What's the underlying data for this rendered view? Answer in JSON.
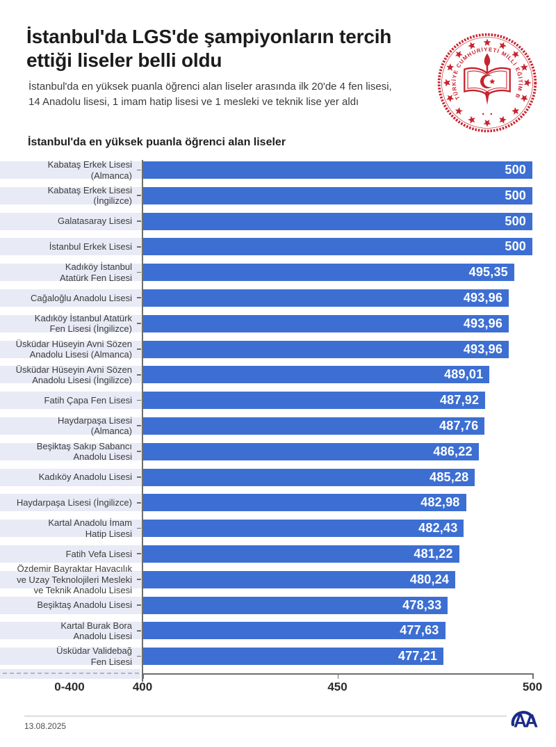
{
  "header": {
    "title_line1": "İstanbul'da LGS'de şampiyonların tercih",
    "title_line2": "ettiği liseler belli oldu",
    "subtitle_line1": "İstanbul'da en yüksek puanla öğrenci alan liseler arasında ilk 20'de 4 fen lisesi,",
    "subtitle_line2": "14 Anadolu lisesi, 1 imam hatip lisesi ve 1 mesleki ve teknik lise yer aldı",
    "ministry_seal_ring_text": "TÜRKİYE CUMHURİYETİ MİLLİ EĞİTİM BAKANLIĞI"
  },
  "chart_title": "İstanbul'da en yüksek puanla öğrenci alan liseler",
  "chart_data": {
    "type": "bar",
    "orientation": "horizontal",
    "title": "İstanbul'da en yüksek puanla öğrenci alan liseler",
    "axis": {
      "display_min": 400,
      "display_max": 500,
      "break_label": "0-400",
      "ticks": [
        {
          "label": "400",
          "value": 400
        },
        {
          "label": "450",
          "value": 450
        },
        {
          "label": "500",
          "value": 500
        }
      ]
    },
    "categories": [
      "Kabataş Erkek Lisesi (Almanca)",
      "Kabataş Erkek Lisesi (İngilizce)",
      "Galatasaray Lisesi",
      "İstanbul Erkek Lisesi",
      "Kadıköy İstanbul Atatürk Fen Lisesi",
      "Cağaloğlu Anadolu Lisesi",
      "Kadıköy İstanbul Atatürk Fen Lisesi (İngilizce)",
      "Üsküdar Hüseyin Avni Sözen Anadolu Lisesi (Almanca)",
      "Üsküdar Hüseyin Avni Sözen Anadolu Lisesi (İngilizce)",
      "Fatih Çapa Fen Lisesi",
      "Haydarpaşa Lisesi (Almanca)",
      "Beşiktaş Sakıp Sabancı Anadolu Lisesi",
      "Kadıköy Anadolu Lisesi",
      "Haydarpaşa Lisesi (İngilizce)",
      "Kartal Anadolu İmam Hatip Lisesi",
      "Fatih Vefa Lisesi",
      "Özdemir Bayraktar Havacılık ve Uzay Teknolojileri Mesleki ve Teknik Anadolu Lisesi",
      "Beşiktaş Anadolu Lisesi",
      "Kartal Burak Bora Anadolu Lisesi",
      "Üsküdar Validebağ Fen Lisesi"
    ],
    "label_lines": [
      [
        "Kabataş Erkek Lisesi",
        "(Almanca)"
      ],
      [
        "Kabataş Erkek Lisesi",
        "(İngilizce)"
      ],
      [
        "Galatasaray Lisesi"
      ],
      [
        "İstanbul Erkek Lisesi"
      ],
      [
        "Kadıköy İstanbul",
        "Atatürk Fen Lisesi"
      ],
      [
        "Cağaloğlu Anadolu Lisesi"
      ],
      [
        "Kadıköy İstanbul Atatürk",
        "Fen Lisesi (İngilizce)"
      ],
      [
        "Üsküdar Hüseyin Avni Sözen",
        "Anadolu Lisesi (Almanca)"
      ],
      [
        "Üsküdar Hüseyin Avni Sözen",
        "Anadolu Lisesi (İngilizce)"
      ],
      [
        "Fatih Çapa Fen Lisesi"
      ],
      [
        "Haydarpaşa Lisesi",
        "(Almanca)"
      ],
      [
        "Beşiktaş Sakıp Sabancı",
        "Anadolu Lisesi"
      ],
      [
        "Kadıköy Anadolu Lisesi"
      ],
      [
        "Haydarpaşa Lisesi (İngilizce)"
      ],
      [
        "Kartal Anadolu İmam",
        "Hatip Lisesi"
      ],
      [
        "Fatih Vefa Lisesi"
      ],
      [
        "Özdemir Bayraktar Havacılık",
        "ve Uzay Teknolojileri Mesleki",
        "ve Teknik Anadolu Lisesi"
      ],
      [
        "Beşiktaş Anadolu Lisesi"
      ],
      [
        "Kartal Burak Bora",
        "Anadolu Lisesi"
      ],
      [
        "Üsküdar Validebağ",
        "Fen Lisesi"
      ]
    ],
    "values": [
      500,
      500,
      500,
      500,
      495.35,
      493.96,
      493.96,
      493.96,
      489.01,
      487.92,
      487.76,
      486.22,
      485.28,
      482.98,
      482.43,
      481.22,
      480.24,
      478.33,
      477.63,
      477.21
    ],
    "value_labels": [
      "500",
      "500",
      "500",
      "500",
      "495,35",
      "493,96",
      "493,96",
      "493,96",
      "489,01",
      "487,92",
      "487,76",
      "486,22",
      "485,28",
      "482,98",
      "482,43",
      "481,22",
      "480,24",
      "478,33",
      "477,63",
      "477,21"
    ],
    "bar_color": "#3d6fd3",
    "row_stripe_color": "#e8eaf5",
    "legend": "none",
    "grid": "off"
  },
  "footer": {
    "date": "13.08.2025",
    "agency_monogram": "AA"
  },
  "colors": {
    "bar_blue": "#3d6fd3",
    "row_stripe": "#e8eaf5",
    "seal_red": "#c8232e",
    "aa_navy": "#1c2b87",
    "axis_gray": "#6e6e6e"
  }
}
